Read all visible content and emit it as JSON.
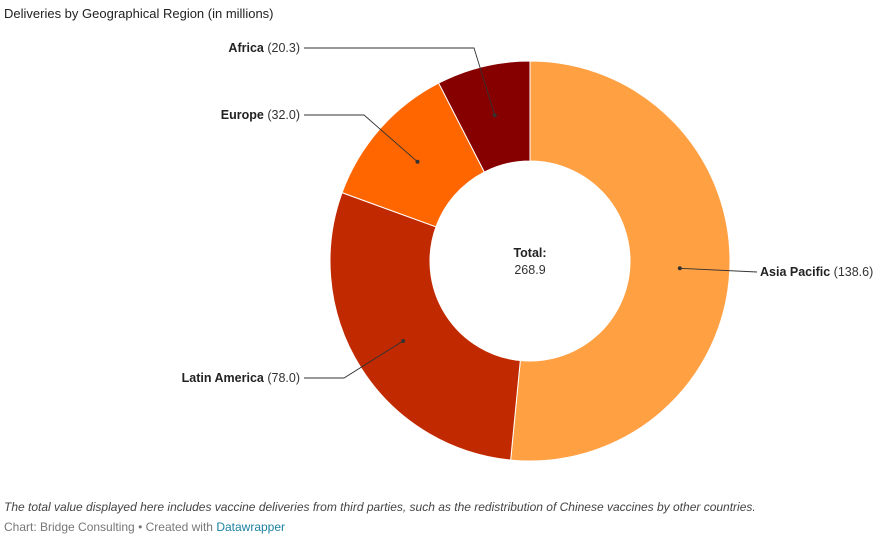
{
  "chart_data": {
    "type": "pie",
    "title": "Deliveries by Geographical Region (in millions)",
    "categories": [
      "Asia Pacific",
      "Latin America",
      "Europe",
      "Africa"
    ],
    "values": [
      138.6,
      78.0,
      32.0,
      20.3
    ],
    "value_labels": [
      "(138.6)",
      "(78.0)",
      "(32.0)",
      "(20.3)"
    ],
    "colors": [
      "#ffa043",
      "#c12a00",
      "#ff6600",
      "#870000"
    ],
    "total_title": "Total:",
    "total_value": "268.9",
    "donut": true,
    "legend": "none"
  },
  "footer": {
    "note": "The total value displayed here includes vaccine deliveries from third parties, such as the redistribution of Chinese vaccines by other countries.",
    "source_text": "Chart: Bridge Consulting • Created with ",
    "link_text": "Datawrapper"
  }
}
